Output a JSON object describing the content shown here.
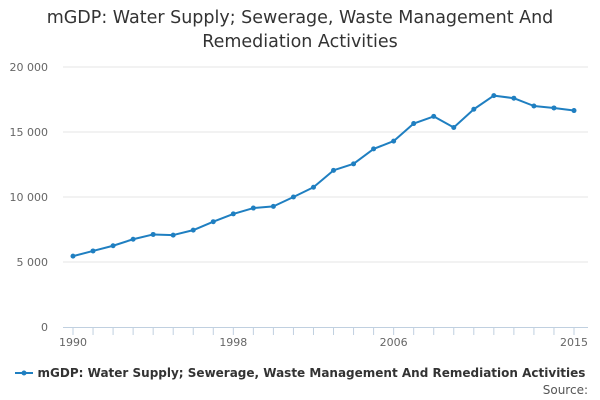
{
  "chart_data": {
    "type": "line",
    "title_lines": [
      "mGDP: Water Supply; Sewerage, Waste Management And",
      "Remediation Activities"
    ],
    "xlabel": "",
    "ylabel": "",
    "x": [
      1990,
      1991,
      1992,
      1993,
      1994,
      1995,
      1996,
      1997,
      1998,
      1999,
      2000,
      2001,
      2002,
      2003,
      2004,
      2005,
      2006,
      2007,
      2008,
      2009,
      2010,
      2011,
      2012,
      2013,
      2014,
      2015
    ],
    "series": [
      {
        "name": "mGDP: Water Supply; Sewerage, Waste Management And Remediation Activities",
        "color": "#1f7fc1",
        "values": [
          5450,
          5850,
          6250,
          6750,
          7120,
          7070,
          7450,
          8100,
          8700,
          9150,
          9280,
          10000,
          10750,
          12050,
          12550,
          13700,
          14300,
          15650,
          16200,
          15350,
          16750,
          17800,
          17600,
          17000,
          16850,
          16650
        ]
      }
    ],
    "ylim": [
      0,
      20000
    ],
    "yticks": [
      0,
      5000,
      10000,
      15000,
      20000
    ],
    "ytick_labels": [
      "0",
      "5 000",
      "10 000",
      "15 000",
      "20 000"
    ],
    "xticks": [
      1990,
      1998,
      2006,
      2015
    ],
    "xtick_labels": [
      "1990",
      "1998",
      "2006",
      "2015"
    ],
    "grid": true,
    "legend_position": "bottom"
  },
  "source_label": "Source:"
}
